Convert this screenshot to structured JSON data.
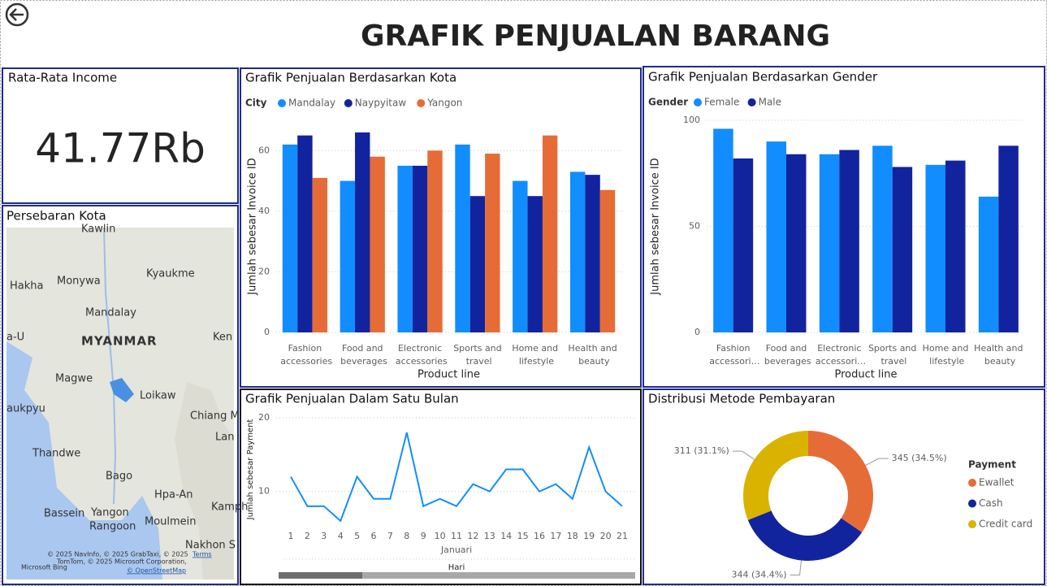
{
  "title": "GRAFIK PENJUALAN BARANG",
  "kpi": {
    "label": "Rata-Rata Income",
    "value": "41.77Rb"
  },
  "map": {
    "title": "Persebaran Kota",
    "places": [
      "Kawlin",
      "Hakha",
      "Monywa",
      "Kyaukme",
      "Mandalay",
      "MYANMAR",
      "Magwe",
      "Loikaw",
      "Chiang M",
      "Thandwe",
      "Bago",
      "Hpa-An",
      "Bassein",
      "Yangon",
      "Rangoon",
      "Moulmein",
      "Kamph",
      "Nakhon S",
      "Ken",
      "Lan",
      "aukpyu",
      "a-U"
    ],
    "credits": [
      "© 2025 NavInfo, © 2025 GrabTaxi, © 2025",
      "Terms",
      "TomTom, © 2025 Microsoft Corporation,",
      "© OpenStreetMap",
      "Microsoft Bing"
    ]
  },
  "chart_data": [
    {
      "type": "bar",
      "title": "Grafik Penjualan Berdasarkan Kota",
      "legend_title": "City",
      "x_label": "Product line",
      "y_label": "Jumlah sebesar Invoice ID",
      "categories": [
        "Fashion accessories",
        "Food and beverages",
        "Electronic accessories",
        "Sports and travel",
        "Home and lifestyle",
        "Health and beauty"
      ],
      "series": [
        {
          "name": "Mandalay",
          "color": "#118dff",
          "values": [
            62,
            50,
            55,
            62,
            50,
            53
          ]
        },
        {
          "name": "Naypyitaw",
          "color": "#12239e",
          "values": [
            65,
            66,
            55,
            45,
            45,
            52
          ]
        },
        {
          "name": "Yangon",
          "color": "#e66c37",
          "values": [
            51,
            58,
            60,
            59,
            65,
            47
          ]
        }
      ],
      "ylim": [
        0,
        70
      ],
      "yticks": [
        0,
        20,
        40,
        60
      ],
      "grid": true
    },
    {
      "type": "bar",
      "title": "Grafik Penjualan Berdasarkan Gender",
      "legend_title": "Gender",
      "x_label": "Product line",
      "y_label": "Jumlah sebesar Invoice ID",
      "categories": [
        "Fashion accessori…",
        "Food and beverages",
        "Electronic accessori…",
        "Sports and travel",
        "Home and lifestyle",
        "Health and beauty"
      ],
      "series": [
        {
          "name": "Female",
          "color": "#118dff",
          "values": [
            96,
            90,
            84,
            88,
            79,
            64
          ]
        },
        {
          "name": "Male",
          "color": "#12239e",
          "values": [
            82,
            84,
            86,
            78,
            81,
            88
          ]
        }
      ],
      "ylim": [
        0,
        100
      ],
      "yticks": [
        0,
        50,
        100
      ],
      "grid": true
    },
    {
      "type": "line",
      "title": "Grafik Penjualan Dalam Satu Bulan",
      "x_label": "Hari",
      "x_period": "Januari",
      "y_label": "Jumlah sebesar Payment",
      "x": [
        1,
        2,
        3,
        4,
        5,
        6,
        7,
        8,
        9,
        10,
        11,
        12,
        13,
        14,
        15,
        16,
        17,
        18,
        19,
        20,
        21
      ],
      "series": [
        {
          "name": "Payment",
          "color": "#118dff",
          "values": [
            12,
            8,
            8,
            6,
            12,
            9,
            9,
            18,
            8,
            9,
            8,
            11,
            10,
            13,
            13,
            10,
            11,
            9,
            16,
            10,
            8
          ]
        }
      ],
      "xlim": [
        1,
        21
      ],
      "xticks": [
        1,
        2,
        3,
        4,
        5,
        6,
        7,
        8,
        9,
        10,
        11,
        12,
        13,
        14,
        15,
        16,
        17,
        18,
        19,
        20,
        21
      ],
      "ylim": [
        5,
        21
      ],
      "yticks": [
        10,
        20
      ],
      "grid": true
    },
    {
      "type": "donut",
      "title": "Distribusi Metode Pembayaran",
      "legend_title": "Payment",
      "categories": [
        "Ewallet",
        "Cash",
        "Credit card"
      ],
      "values": [
        345,
        344,
        311
      ],
      "value_labels": [
        "345 (34.5%)",
        "344 (34.4%)",
        "311 (31.1%)"
      ],
      "colors": [
        "#e66c37",
        "#12239e",
        "#d9b300"
      ]
    }
  ]
}
